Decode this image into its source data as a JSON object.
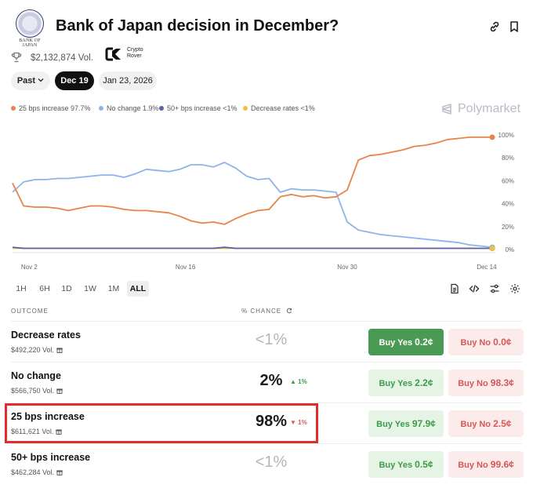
{
  "header": {
    "logo_caption": "BANK OF JAPAN",
    "title": "Bank of Japan decision in December?"
  },
  "meta": {
    "volume": "$2,132,874 Vol.",
    "creator": "Crypto Rover"
  },
  "date_pills": [
    "Past",
    "Dec 19",
    "Jan 23, 2026"
  ],
  "legend": [
    {
      "label": "25 bps increase 97.7%",
      "color": "#e8844a"
    },
    {
      "label": "No change 1.9%",
      "color": "#8fb4e8"
    },
    {
      "label": "50+ bps increase <1%",
      "color": "#5a5fa8"
    },
    {
      "label": "Decrease rates <1%",
      "color": "#f0c040"
    }
  ],
  "brand": "Polymarket",
  "ranges": [
    "1H",
    "6H",
    "1D",
    "1W",
    "1M",
    "ALL"
  ],
  "table": {
    "outcome_header": "OUTCOME",
    "chance_header": "% CHANCE",
    "rows": [
      {
        "label": "Decrease rates",
        "volume": "$492,220 Vol.",
        "chance": "<1%",
        "delta": "",
        "yes": "Buy Yes",
        "yes_price": "0.2¢",
        "no": "Buy No",
        "no_price": "0.0¢"
      },
      {
        "label": "No change",
        "volume": "$566,750 Vol.",
        "chance": "2%",
        "delta": "▲ 1%",
        "yes": "Buy Yes",
        "yes_price": "2.2¢",
        "no": "Buy No",
        "no_price": "98.3¢"
      },
      {
        "label": "25 bps increase",
        "volume": "$611,621 Vol.",
        "chance": "98%",
        "delta": "▼ 1%",
        "yes": "Buy Yes",
        "yes_price": "97.9¢",
        "no": "Buy No",
        "no_price": "2.5¢"
      },
      {
        "label": "50+ bps increase",
        "volume": "$462,284 Vol.",
        "chance": "<1%",
        "delta": "",
        "yes": "Buy Yes",
        "yes_price": "0.5¢",
        "no": "Buy No",
        "no_price": "99.6¢"
      }
    ]
  },
  "chart_data": {
    "type": "line",
    "x_ticks": [
      "Nov 2",
      "Nov 16",
      "Nov 30",
      "Dec 14"
    ],
    "y_ticks": [
      "100%",
      "80%",
      "60%",
      "40%",
      "20%",
      "0%"
    ],
    "ylim": [
      0,
      100
    ],
    "x": [
      0,
      1,
      2,
      3,
      4,
      5,
      6,
      7,
      8,
      9,
      10,
      11,
      12,
      13,
      14,
      15,
      16,
      17,
      18,
      19,
      20,
      21,
      22,
      23,
      24,
      25,
      26,
      27,
      28,
      29,
      30,
      31,
      32,
      33,
      34,
      35,
      36,
      37,
      38,
      39,
      40,
      41,
      42,
      43
    ],
    "series": [
      {
        "name": "25 bps increase",
        "color": "#e8844a",
        "values": [
          58,
          38,
          37,
          37,
          36,
          34,
          36,
          38,
          38,
          37,
          35,
          34,
          34,
          33,
          32,
          29,
          25,
          23,
          24,
          22,
          27,
          31,
          34,
          35,
          46,
          48,
          46,
          47,
          45,
          46,
          52,
          78,
          82,
          83,
          85,
          87,
          90,
          91,
          93,
          96,
          97,
          98,
          98,
          98
        ]
      },
      {
        "name": "No change",
        "color": "#8fb4e8",
        "values": [
          50,
          59,
          61,
          61,
          62,
          62,
          63,
          64,
          65,
          65,
          63,
          66,
          70,
          69,
          68,
          70,
          74,
          74,
          72,
          76,
          71,
          64,
          61,
          62,
          50,
          53,
          52,
          52,
          51,
          50,
          24,
          17,
          15,
          13,
          12,
          11,
          10,
          9,
          8,
          7,
          6,
          4,
          3,
          2
        ]
      },
      {
        "name": "50+ bps increase",
        "color": "#5a5fa8",
        "values": [
          2,
          1,
          1,
          1,
          1,
          1,
          1,
          1,
          1,
          1,
          1,
          1,
          1,
          1,
          1,
          1,
          1,
          1,
          1,
          2,
          1,
          1,
          1,
          1,
          1,
          1,
          1,
          1,
          1,
          1,
          1,
          1,
          1,
          1,
          1,
          1,
          1,
          1,
          1,
          1,
          1,
          1,
          1,
          1
        ]
      },
      {
        "name": "Decrease rates",
        "color": "#f0c040",
        "values": [
          1,
          1,
          1,
          1,
          1,
          1,
          1,
          1,
          1,
          1,
          1,
          1,
          1,
          1,
          1,
          1,
          1,
          1,
          1,
          1,
          1,
          1,
          1,
          1,
          1,
          1,
          1,
          1,
          1,
          1,
          1,
          1,
          1,
          1,
          1,
          1,
          1,
          1,
          1,
          1,
          1,
          1,
          1,
          1
        ]
      }
    ]
  }
}
